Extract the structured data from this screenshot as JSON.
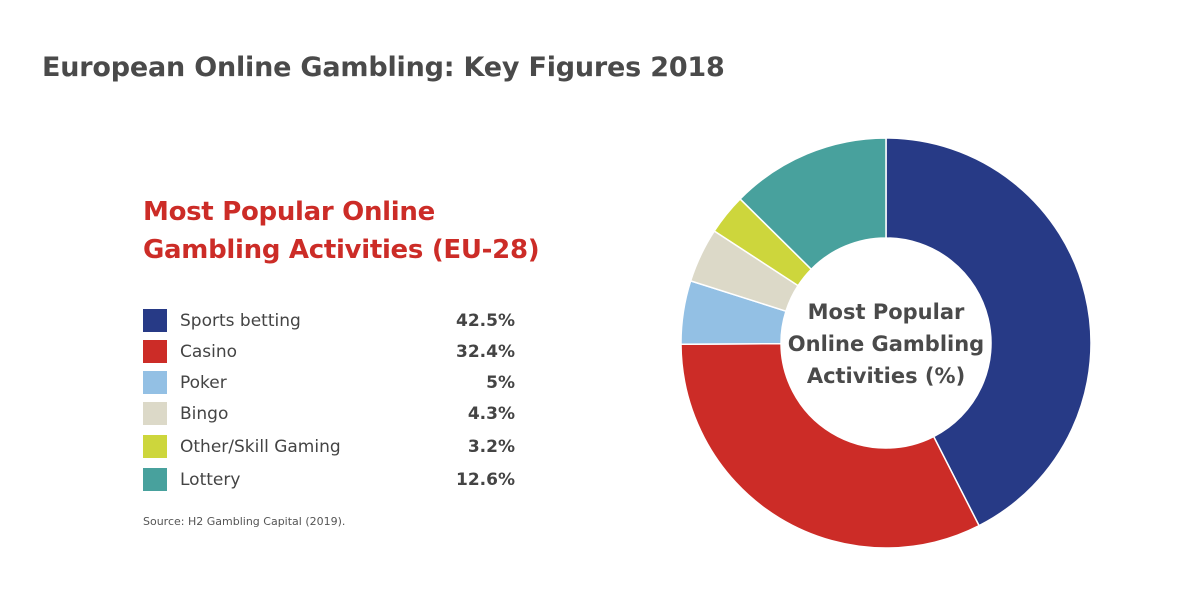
{
  "header": {
    "title": "European Online Gambling: Key Figures 2018"
  },
  "chart_data": {
    "type": "pie",
    "variant": "donut",
    "title": "Most Popular Online Gambling Activities (EU-28)",
    "title_lines": [
      "Most Popular Online",
      "Gambling Activities (EU-28)"
    ],
    "center_label_lines": [
      "Most Popular",
      "Online Gambling",
      "Activities (%)"
    ],
    "categories": [
      "Sports betting",
      "Casino",
      "Poker",
      "Bingo",
      "Other/Skill Gaming",
      "Lottery"
    ],
    "values": [
      42.5,
      32.4,
      5,
      4.3,
      3.2,
      12.6
    ],
    "value_labels": [
      "42.5%",
      "32.4%",
      "5%",
      "4.3%",
      "3.2%",
      "12.6%"
    ],
    "colors": [
      "#273a86",
      "#cc2c27",
      "#93c0e4",
      "#dcd9c8",
      "#cdd63c",
      "#48a19d"
    ],
    "legend_position": "left"
  },
  "source": "Source: H2 Gambling Capital (2019)."
}
